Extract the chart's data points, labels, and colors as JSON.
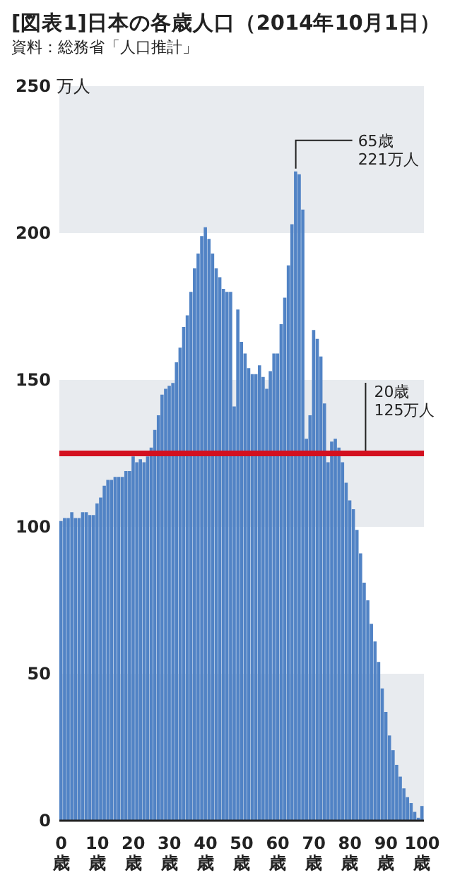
{
  "chart_data": {
    "type": "bar",
    "title": "[図表1]日本の各歳人口（2014年10月1日）",
    "subtitle": "資料：総務省「人口推計」",
    "ylabel": "万人",
    "x": [
      0,
      1,
      2,
      3,
      4,
      5,
      6,
      7,
      8,
      9,
      10,
      11,
      12,
      13,
      14,
      15,
      16,
      17,
      18,
      19,
      20,
      21,
      22,
      23,
      24,
      25,
      26,
      27,
      28,
      29,
      30,
      31,
      32,
      33,
      34,
      35,
      36,
      37,
      38,
      39,
      40,
      41,
      42,
      43,
      44,
      45,
      46,
      47,
      48,
      49,
      50,
      51,
      52,
      53,
      54,
      55,
      56,
      57,
      58,
      59,
      60,
      61,
      62,
      63,
      64,
      65,
      66,
      67,
      68,
      69,
      70,
      71,
      72,
      73,
      74,
      75,
      76,
      77,
      78,
      79,
      80,
      81,
      82,
      83,
      84,
      85,
      86,
      87,
      88,
      89,
      90,
      91,
      92,
      93,
      94,
      95,
      96,
      97,
      98,
      99,
      100
    ],
    "values": [
      102,
      103,
      103,
      105,
      103,
      103,
      105,
      105,
      104,
      104,
      108,
      110,
      114,
      116,
      116,
      117,
      117,
      117,
      119,
      119,
      124,
      122,
      123,
      122,
      124,
      127,
      133,
      138,
      145,
      147,
      148,
      149,
      156,
      161,
      168,
      172,
      180,
      188,
      193,
      199,
      202,
      198,
      193,
      188,
      185,
      181,
      180,
      180,
      141,
      174,
      163,
      159,
      154,
      152,
      152,
      155,
      151,
      147,
      153,
      159,
      159,
      169,
      178,
      189,
      203,
      221,
      220,
      208,
      130,
      138,
      167,
      164,
      158,
      142,
      122,
      129,
      130,
      127,
      122,
      115,
      109,
      106,
      99,
      91,
      81,
      75,
      67,
      61,
      54,
      45,
      37,
      29,
      24,
      19,
      15,
      11,
      8,
      6,
      3,
      1,
      5
    ],
    "color": "#5183c5",
    "xlim": [
      -0.5,
      100.5
    ],
    "xticks": [
      {
        "value": 0,
        "label": "0歳"
      },
      {
        "value": 10,
        "label": "10歳"
      },
      {
        "value": 20,
        "label": "20歳"
      },
      {
        "value": 30,
        "label": "30歳"
      },
      {
        "value": 40,
        "label": "40歳"
      },
      {
        "value": 50,
        "label": "50歳"
      },
      {
        "value": 60,
        "label": "60歳"
      },
      {
        "value": 70,
        "label": "70歳"
      },
      {
        "value": 80,
        "label": "80歳"
      },
      {
        "value": 90,
        "label": "90歳"
      },
      {
        "value": 100,
        "label": "100歳"
      }
    ],
    "legend": false,
    "ylim": [
      0,
      250
    ],
    "yticks": [
      0,
      50,
      100,
      150,
      200,
      250
    ],
    "bands": [
      {
        "axis": "y",
        "from": 0,
        "to": 50,
        "color": "#e8ebef"
      },
      {
        "axis": "y",
        "from": 100,
        "to": 150,
        "color": "#e8ebef"
      },
      {
        "axis": "y",
        "from": 200,
        "to": 250,
        "color": "#e8ebef"
      }
    ],
    "ref_lines": [
      {
        "axis": "y",
        "value": 125,
        "label": "20歳 125万人",
        "color": "#d3101f"
      }
    ],
    "annotations": [
      {
        "text": "65歳 221万人",
        "x": 65,
        "y": 221
      }
    ]
  }
}
